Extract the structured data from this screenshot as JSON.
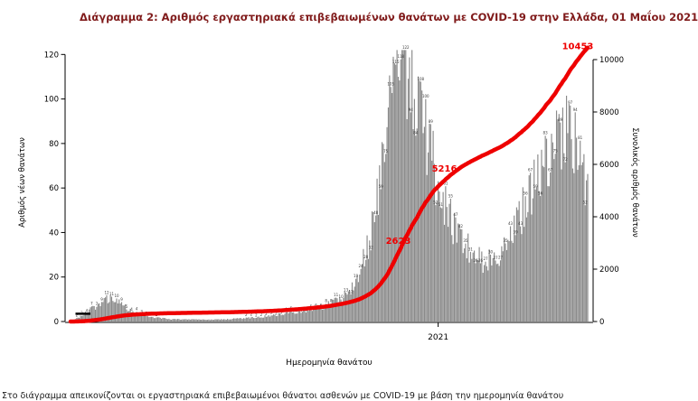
{
  "title": "Διάγραμμα 2: Αριθμός εργαστηριακά επιβεβαιωμένων θανάτων με COVID-19 στην Ελλάδα, 01 Μαΐου 2021",
  "footer": {
    "caption": "Στο διάγραμμα απεικονίζονται οι εργαστηριακά επιβεβαιωμένοι θάνατοι ασθενών με COVID-19 με βάση την ημερομηνία θανάτου"
  },
  "colors": {
    "title": "#801b1b",
    "bar": "#8a8a8a",
    "line": "#ee0000",
    "annotation": "#ee0000",
    "axis": "#000000",
    "bar_label": "#3a3a3a",
    "black_marker": "#000000"
  },
  "chart_data": {
    "type": "bar",
    "title": "Διάγραμμα 2: Αριθμός εργαστηριακά επιβεβαιωμένων θανάτων με COVID-19 στην Ελλάδα, 01 Μαΐου 2021",
    "xlabel": "Ημερομηνία θανάτου",
    "ylabel_left": "Αριθμός νέων θανάτων",
    "ylabel_right": "Συνολικός αριθμός θανάτων",
    "left_ticks": [
      0,
      20,
      40,
      60,
      80,
      100,
      120
    ],
    "right_ticks": [
      0,
      2000,
      4000,
      6000,
      8000,
      10000
    ],
    "ylim_left": [
      0,
      125
    ],
    "ylim_right": [
      0,
      10620
    ],
    "x_ticks": [
      {
        "label": "2021",
        "day": 295
      }
    ],
    "days_total": 416,
    "series": [
      {
        "name": "daily-deaths",
        "type": "bar",
        "color": "#8a8a8a",
        "days": 416,
        "control_points": [
          [
            0,
            0
          ],
          [
            4,
            1
          ],
          [
            10,
            3
          ],
          [
            18,
            6
          ],
          [
            26,
            9
          ],
          [
            33,
            11
          ],
          [
            40,
            8
          ],
          [
            48,
            5
          ],
          [
            56,
            3
          ],
          [
            66,
            2
          ],
          [
            80,
            1
          ],
          [
            95,
            1
          ],
          [
            110,
            0.8
          ],
          [
            125,
            1
          ],
          [
            140,
            1.5
          ],
          [
            152,
            2
          ],
          [
            164,
            3
          ],
          [
            176,
            4
          ],
          [
            188,
            5
          ],
          [
            198,
            6
          ],
          [
            208,
            8
          ],
          [
            216,
            10
          ],
          [
            222,
            13
          ],
          [
            228,
            18
          ],
          [
            234,
            26
          ],
          [
            240,
            38
          ],
          [
            246,
            55
          ],
          [
            251,
            75
          ],
          [
            255,
            95
          ],
          [
            259,
            108
          ],
          [
            263,
            116
          ],
          [
            267,
            119
          ],
          [
            270,
            113
          ],
          [
            274,
            104
          ],
          [
            278,
            97
          ],
          [
            282,
            92
          ],
          [
            286,
            84
          ],
          [
            290,
            74
          ],
          [
            294,
            64
          ],
          [
            298,
            56
          ],
          [
            303,
            48
          ],
          [
            308,
            42
          ],
          [
            314,
            37
          ],
          [
            320,
            32
          ],
          [
            326,
            29
          ],
          [
            332,
            27
          ],
          [
            338,
            28
          ],
          [
            344,
            31
          ],
          [
            350,
            36
          ],
          [
            356,
            42
          ],
          [
            362,
            49
          ],
          [
            368,
            56
          ],
          [
            374,
            63
          ],
          [
            380,
            70
          ],
          [
            386,
            77
          ],
          [
            391,
            83
          ],
          [
            396,
            87
          ],
          [
            400,
            84
          ],
          [
            404,
            79
          ],
          [
            408,
            73
          ],
          [
            412,
            66
          ],
          [
            415,
            60
          ]
        ]
      },
      {
        "name": "cumulative-deaths",
        "type": "line",
        "color": "#ee0000",
        "cumulative_of": "daily-deaths",
        "final_value": 10453
      }
    ],
    "annotations": [
      {
        "text": "2623",
        "day": 263,
        "dy": -10
      },
      {
        "text": "5216",
        "day": 300,
        "dy": -10
      },
      {
        "text": "10453",
        "day": 407,
        "dy": -12
      }
    ],
    "black_marker": {
      "day_start": 4,
      "day_end": 16,
      "value": 3.5
    }
  }
}
